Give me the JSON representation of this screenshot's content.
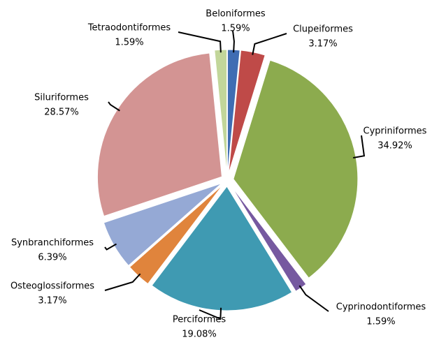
{
  "chart_data": {
    "type": "pie",
    "categories": [
      "Beloniformes",
      "Clupeiformes",
      "Cypriniformes",
      "Cyprinodontiformes",
      "Perciformes",
      "Osteoglossiformes",
      "Synbranchiformes",
      "Siluriformes",
      "Tetraodontiformes"
    ],
    "values": [
      1.59,
      3.17,
      34.92,
      1.59,
      19.08,
      3.17,
      6.39,
      28.57,
      1.59
    ],
    "value_labels": [
      "1.59%",
      "3.17%",
      "34.92%",
      "1.59%",
      "19.08%",
      "3.17%",
      "6.39%",
      "28.57%",
      "1.59%"
    ],
    "colors": [
      "#3f6db3",
      "#bf4a48",
      "#8cab4e",
      "#7659a0",
      "#3f9ab2",
      "#e0843c",
      "#95a9d5",
      "#d39493",
      "#c2d69a"
    ]
  }
}
